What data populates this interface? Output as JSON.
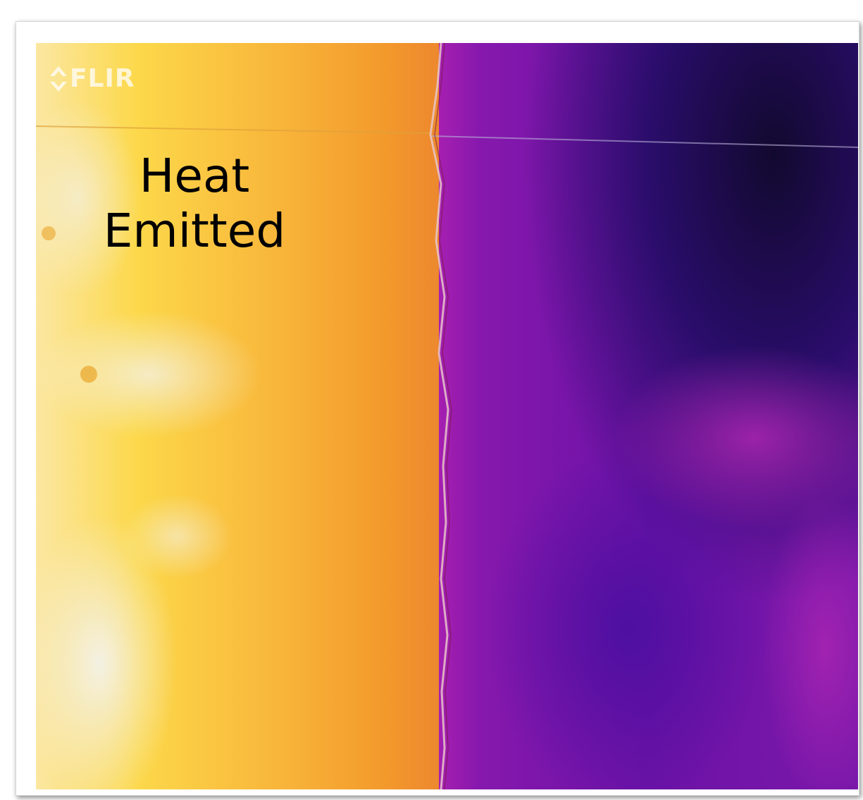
{
  "image": {
    "kind": "thermal-photo",
    "logo_text": "FLIR",
    "caption_lines": [
      "Heat",
      "Emitted"
    ],
    "palette": {
      "hot_white": "#f6f0dc",
      "hot_yellow": "#fcd22e",
      "warm_orange": "#f59a2a",
      "edge_orange": "#ee8a2e",
      "cool_magenta": "#a51fb0",
      "cool_purple": "#6c12a6",
      "cold_navy": "#1b0b50"
    }
  }
}
